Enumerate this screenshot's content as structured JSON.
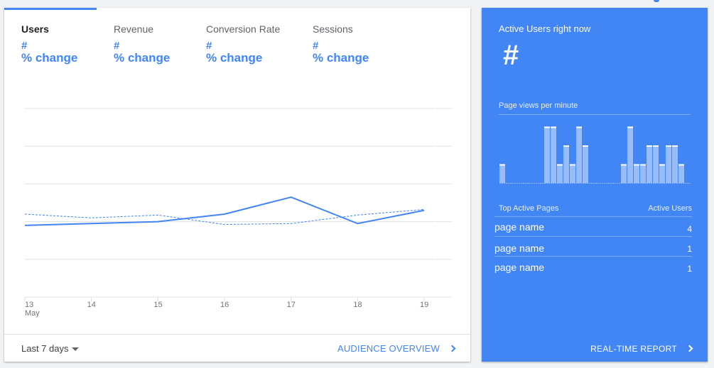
{
  "metrics": [
    {
      "label": "Users",
      "value": "#",
      "change": "% change",
      "active": true
    },
    {
      "label": "Revenue",
      "value": "#",
      "change": "% change",
      "active": false
    },
    {
      "label": "Conversion Rate",
      "value": "#",
      "change": "% change",
      "active": false
    },
    {
      "label": "Sessions",
      "value": "#",
      "change": "% change",
      "active": false
    }
  ],
  "chart_data": {
    "type": "line",
    "x": [
      "13",
      "14",
      "15",
      "16",
      "17",
      "18",
      "19"
    ],
    "x_sublabel": "May",
    "series": [
      {
        "style": "solid",
        "values": [
          38.0,
          39.0,
          40.0,
          44.0,
          53.0,
          39.0,
          46.0
        ]
      },
      {
        "style": "dashed",
        "values": [
          44.0,
          42.0,
          43.5,
          38.5,
          39.0,
          43.5,
          46.5
        ]
      }
    ],
    "ylim": [
      0,
      100
    ],
    "grid": true,
    "colors": {
      "line": "#4285f4",
      "grid": "#e0e0e0"
    }
  },
  "footer": {
    "range_label": "Last 7 days",
    "audience_link": "AUDIENCE OVERVIEW"
  },
  "realtime": {
    "title": "Active Users right now",
    "value": "#",
    "pageviews_label": "Page views per minute",
    "pageviews_bars": [
      1,
      0,
      0,
      0,
      0,
      0,
      0,
      3,
      3,
      1,
      2,
      1,
      3,
      2,
      0,
      0,
      0,
      0,
      0,
      1,
      3,
      1,
      1,
      2,
      2,
      1,
      2,
      2,
      1
    ],
    "table_header_left": "Top Active Pages",
    "table_header_right": "Active Users",
    "pages": [
      {
        "name": "page name",
        "count": "4"
      },
      {
        "name": "page name",
        "count": "1"
      },
      {
        "name": "page name",
        "count": "1"
      }
    ],
    "link": "REAL-TIME REPORT",
    "bg_color": "#4285f4"
  }
}
